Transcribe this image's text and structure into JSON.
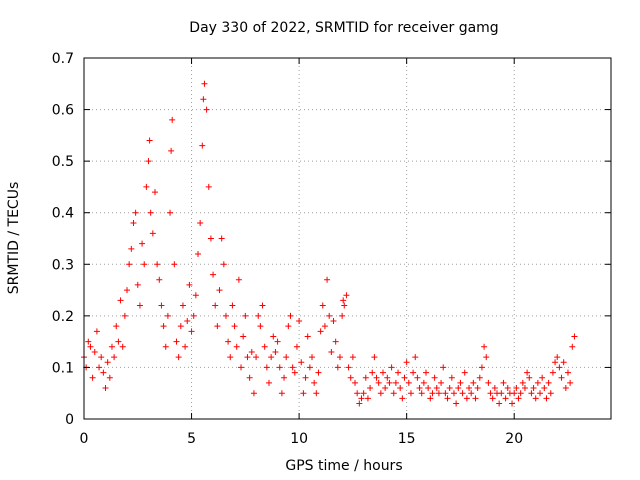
{
  "chart_data": {
    "type": "scatter",
    "title": "Day 330 of 2022, SRMTID for receiver gamg",
    "xlabel": "GPS time / hours",
    "ylabel": "SRMTID / TECUs",
    "xlim": [
      0,
      24.5
    ],
    "ylim": [
      0,
      0.7
    ],
    "xticks": [
      0,
      5,
      10,
      15,
      20
    ],
    "xtick_labels": [
      "0",
      "5",
      "10",
      "15",
      "20"
    ],
    "yticks": [
      0,
      0.1,
      0.2,
      0.3,
      0.4,
      0.5,
      0.6,
      0.7
    ],
    "ytick_labels": [
      "0",
      "0.1",
      "0.2",
      "0.3",
      "0.4",
      "0.5",
      "0.6",
      "0.7"
    ],
    "grid": true,
    "marker": "plus",
    "color": "#ff0000",
    "series": [
      {
        "name": "SRMTID",
        "points": [
          [
            0.0,
            0.12
          ],
          [
            0.1,
            0.1
          ],
          [
            0.2,
            0.15
          ],
          [
            0.3,
            0.14
          ],
          [
            0.4,
            0.08
          ],
          [
            0.5,
            0.13
          ],
          [
            0.6,
            0.17
          ],
          [
            0.7,
            0.1
          ],
          [
            0.8,
            0.12
          ],
          [
            0.9,
            0.09
          ],
          [
            1.0,
            0.06
          ],
          [
            1.1,
            0.11
          ],
          [
            1.2,
            0.08
          ],
          [
            1.3,
            0.14
          ],
          [
            1.4,
            0.12
          ],
          [
            1.5,
            0.18
          ],
          [
            1.6,
            0.15
          ],
          [
            1.7,
            0.23
          ],
          [
            1.8,
            0.14
          ],
          [
            1.9,
            0.2
          ],
          [
            2.0,
            0.25
          ],
          [
            2.1,
            0.3
          ],
          [
            2.2,
            0.33
          ],
          [
            2.3,
            0.38
          ],
          [
            2.4,
            0.4
          ],
          [
            2.5,
            0.26
          ],
          [
            2.6,
            0.22
          ],
          [
            2.7,
            0.34
          ],
          [
            2.8,
            0.3
          ],
          [
            2.9,
            0.45
          ],
          [
            3.0,
            0.5
          ],
          [
            3.05,
            0.54
          ],
          [
            3.1,
            0.4
          ],
          [
            3.2,
            0.36
          ],
          [
            3.3,
            0.44
          ],
          [
            3.4,
            0.3
          ],
          [
            3.5,
            0.27
          ],
          [
            3.6,
            0.22
          ],
          [
            3.7,
            0.18
          ],
          [
            3.8,
            0.14
          ],
          [
            3.9,
            0.2
          ],
          [
            4.0,
            0.4
          ],
          [
            4.05,
            0.52
          ],
          [
            4.1,
            0.58
          ],
          [
            4.2,
            0.3
          ],
          [
            4.3,
            0.15
          ],
          [
            4.4,
            0.12
          ],
          [
            4.5,
            0.18
          ],
          [
            4.6,
            0.22
          ],
          [
            4.7,
            0.14
          ],
          [
            4.8,
            0.19
          ],
          [
            4.9,
            0.26
          ],
          [
            5.0,
            0.17
          ],
          [
            5.1,
            0.2
          ],
          [
            5.2,
            0.24
          ],
          [
            5.3,
            0.32
          ],
          [
            5.4,
            0.38
          ],
          [
            5.5,
            0.53
          ],
          [
            5.55,
            0.62
          ],
          [
            5.6,
            0.65
          ],
          [
            5.7,
            0.6
          ],
          [
            5.8,
            0.45
          ],
          [
            5.9,
            0.35
          ],
          [
            6.0,
            0.28
          ],
          [
            6.1,
            0.22
          ],
          [
            6.2,
            0.18
          ],
          [
            6.3,
            0.25
          ],
          [
            6.4,
            0.35
          ],
          [
            6.5,
            0.3
          ],
          [
            6.6,
            0.2
          ],
          [
            6.7,
            0.15
          ],
          [
            6.8,
            0.12
          ],
          [
            6.9,
            0.22
          ],
          [
            7.0,
            0.18
          ],
          [
            7.1,
            0.14
          ],
          [
            7.2,
            0.27
          ],
          [
            7.3,
            0.1
          ],
          [
            7.4,
            0.16
          ],
          [
            7.5,
            0.2
          ],
          [
            7.6,
            0.12
          ],
          [
            7.7,
            0.08
          ],
          [
            7.8,
            0.13
          ],
          [
            7.9,
            0.05
          ],
          [
            8.0,
            0.12
          ],
          [
            8.1,
            0.2
          ],
          [
            8.2,
            0.18
          ],
          [
            8.3,
            0.22
          ],
          [
            8.4,
            0.14
          ],
          [
            8.5,
            0.1
          ],
          [
            8.6,
            0.07
          ],
          [
            8.7,
            0.12
          ],
          [
            8.8,
            0.16
          ],
          [
            8.9,
            0.13
          ],
          [
            9.0,
            0.15
          ],
          [
            9.1,
            0.1
          ],
          [
            9.2,
            0.05
          ],
          [
            9.3,
            0.08
          ],
          [
            9.4,
            0.12
          ],
          [
            9.5,
            0.18
          ],
          [
            9.6,
            0.2
          ],
          [
            9.7,
            0.1
          ],
          [
            9.8,
            0.09
          ],
          [
            9.9,
            0.14
          ],
          [
            10.0,
            0.19
          ],
          [
            10.1,
            0.11
          ],
          [
            10.2,
            0.05
          ],
          [
            10.3,
            0.08
          ],
          [
            10.4,
            0.16
          ],
          [
            10.5,
            0.1
          ],
          [
            10.6,
            0.12
          ],
          [
            10.7,
            0.07
          ],
          [
            10.8,
            0.05
          ],
          [
            10.9,
            0.09
          ],
          [
            11.0,
            0.17
          ],
          [
            11.1,
            0.22
          ],
          [
            11.2,
            0.18
          ],
          [
            11.3,
            0.27
          ],
          [
            11.4,
            0.2
          ],
          [
            11.5,
            0.13
          ],
          [
            11.6,
            0.19
          ],
          [
            11.7,
            0.15
          ],
          [
            11.8,
            0.1
          ],
          [
            11.9,
            0.12
          ],
          [
            12.0,
            0.2
          ],
          [
            12.05,
            0.23
          ],
          [
            12.1,
            0.22
          ],
          [
            12.2,
            0.24
          ],
          [
            12.3,
            0.1
          ],
          [
            12.4,
            0.08
          ],
          [
            12.5,
            0.12
          ],
          [
            12.6,
            0.07
          ],
          [
            12.7,
            0.05
          ],
          [
            12.8,
            0.03
          ],
          [
            12.9,
            0.04
          ],
          [
            13.0,
            0.05
          ],
          [
            13.1,
            0.08
          ],
          [
            13.2,
            0.04
          ],
          [
            13.3,
            0.06
          ],
          [
            13.4,
            0.09
          ],
          [
            13.5,
            0.12
          ],
          [
            13.6,
            0.08
          ],
          [
            13.7,
            0.07
          ],
          [
            13.8,
            0.05
          ],
          [
            13.9,
            0.09
          ],
          [
            14.0,
            0.06
          ],
          [
            14.1,
            0.08
          ],
          [
            14.2,
            0.07
          ],
          [
            14.3,
            0.1
          ],
          [
            14.4,
            0.05
          ],
          [
            14.5,
            0.07
          ],
          [
            14.6,
            0.09
          ],
          [
            14.7,
            0.06
          ],
          [
            14.8,
            0.04
          ],
          [
            14.9,
            0.08
          ],
          [
            15.0,
            0.11
          ],
          [
            15.1,
            0.07
          ],
          [
            15.2,
            0.05
          ],
          [
            15.3,
            0.09
          ],
          [
            15.4,
            0.12
          ],
          [
            15.5,
            0.08
          ],
          [
            15.6,
            0.06
          ],
          [
            15.7,
            0.05
          ],
          [
            15.8,
            0.07
          ],
          [
            15.9,
            0.09
          ],
          [
            16.0,
            0.06
          ],
          [
            16.1,
            0.04
          ],
          [
            16.2,
            0.05
          ],
          [
            16.3,
            0.08
          ],
          [
            16.4,
            0.06
          ],
          [
            16.5,
            0.05
          ],
          [
            16.6,
            0.07
          ],
          [
            16.7,
            0.1
          ],
          [
            16.8,
            0.05
          ],
          [
            16.9,
            0.04
          ],
          [
            17.0,
            0.06
          ],
          [
            17.1,
            0.08
          ],
          [
            17.2,
            0.05
          ],
          [
            17.3,
            0.03
          ],
          [
            17.4,
            0.06
          ],
          [
            17.5,
            0.07
          ],
          [
            17.6,
            0.05
          ],
          [
            17.7,
            0.09
          ],
          [
            17.8,
            0.04
          ],
          [
            17.9,
            0.06
          ],
          [
            18.0,
            0.05
          ],
          [
            18.1,
            0.07
          ],
          [
            18.2,
            0.04
          ],
          [
            18.3,
            0.06
          ],
          [
            18.4,
            0.08
          ],
          [
            18.5,
            0.1
          ],
          [
            18.6,
            0.14
          ],
          [
            18.7,
            0.12
          ],
          [
            18.8,
            0.07
          ],
          [
            18.9,
            0.05
          ],
          [
            19.0,
            0.04
          ],
          [
            19.1,
            0.06
          ],
          [
            19.2,
            0.05
          ],
          [
            19.3,
            0.03
          ],
          [
            19.4,
            0.05
          ],
          [
            19.5,
            0.07
          ],
          [
            19.6,
            0.04
          ],
          [
            19.7,
            0.06
          ],
          [
            19.8,
            0.05
          ],
          [
            19.9,
            0.03
          ],
          [
            20.0,
            0.05
          ],
          [
            20.1,
            0.06
          ],
          [
            20.2,
            0.04
          ],
          [
            20.3,
            0.05
          ],
          [
            20.4,
            0.07
          ],
          [
            20.5,
            0.06
          ],
          [
            20.6,
            0.09
          ],
          [
            20.7,
            0.08
          ],
          [
            20.8,
            0.05
          ],
          [
            20.9,
            0.06
          ],
          [
            21.0,
            0.04
          ],
          [
            21.1,
            0.07
          ],
          [
            21.2,
            0.05
          ],
          [
            21.3,
            0.08
          ],
          [
            21.4,
            0.06
          ],
          [
            21.5,
            0.04
          ],
          [
            21.6,
            0.07
          ],
          [
            21.7,
            0.05
          ],
          [
            21.8,
            0.09
          ],
          [
            21.9,
            0.11
          ],
          [
            22.0,
            0.12
          ],
          [
            22.1,
            0.1
          ],
          [
            22.2,
            0.08
          ],
          [
            22.3,
            0.11
          ],
          [
            22.4,
            0.06
          ],
          [
            22.5,
            0.09
          ],
          [
            22.6,
            0.07
          ],
          [
            22.7,
            0.14
          ],
          [
            22.8,
            0.16
          ]
        ]
      }
    ]
  }
}
